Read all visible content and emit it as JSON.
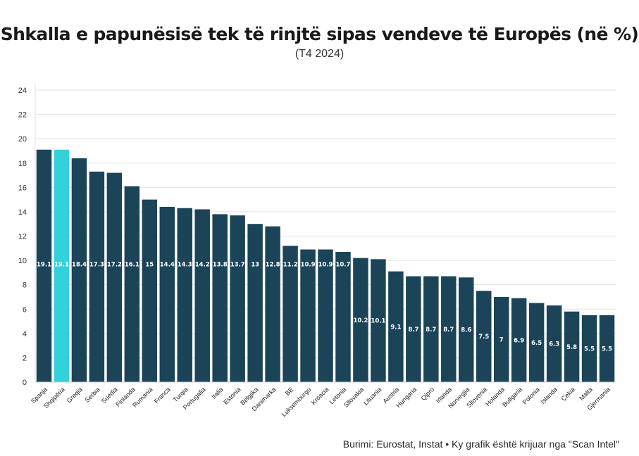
{
  "chart_data": {
    "type": "bar",
    "title": "Shkalla e papunësisë tek të rinjtë sipas vendeve të Europës (në %)",
    "subtitle": "(T4 2024)",
    "categories": [
      "Spanja",
      "Shqipëria",
      "Greqia",
      "Serbia",
      "Suedia",
      "Finlanda",
      "Rumania",
      "Franca",
      "Turqia",
      "Portugalia",
      "Italia",
      "Estonia",
      "Belgjika",
      "Danimarka",
      "BE",
      "Luksemburgu",
      "Kroacia",
      "Letonia",
      "Sllovakia",
      "Lituania",
      "Austria",
      "Hungaria",
      "Qipro",
      "Irlanda",
      "Norvegjia",
      "Sllovenia",
      "Holanda",
      "Bullgaria",
      "Polonia",
      "Islanda",
      "Çekia",
      "Malta",
      "Gjermania"
    ],
    "values": [
      19.1,
      19.1,
      18.4,
      17.3,
      17.2,
      16.1,
      15,
      14.4,
      14.3,
      14.2,
      13.8,
      13.7,
      13,
      12.8,
      11.2,
      10.9,
      10.9,
      10.7,
      10.2,
      10.1,
      9.1,
      8.7,
      8.7,
      8.7,
      8.6,
      7.5,
      7,
      6.9,
      6.5,
      6.3,
      5.8,
      5.5,
      5.5
    ],
    "value_labels": [
      "19.1",
      "19.1",
      "18.4",
      "17.3",
      "17.2",
      "16.1",
      "15",
      "14.4",
      "14.3",
      "14.2",
      "13.8",
      "13.7",
      "13",
      "12.8",
      "11.2",
      "10.9",
      "10.9",
      "10.7",
      "10.2",
      "10.1",
      "9.1",
      "8.7",
      "8.7",
      "8.7",
      "8.6",
      "7.5",
      "7",
      "6.9",
      "6.5",
      "6.3",
      "5.8",
      "5.5",
      "5.5"
    ],
    "ylim": [
      0,
      24
    ],
    "yticks": [
      0,
      2,
      4,
      6,
      8,
      10,
      12,
      14,
      16,
      18,
      20,
      22,
      24
    ],
    "grid": true,
    "colors": {
      "default": "#1b4459",
      "highlight": "#33d1db"
    },
    "highlight_category": "Shqipëria"
  },
  "source": "Burimi: Eurostat, Instat • Ky grafik është krijuar nga \"Scan Intel\""
}
